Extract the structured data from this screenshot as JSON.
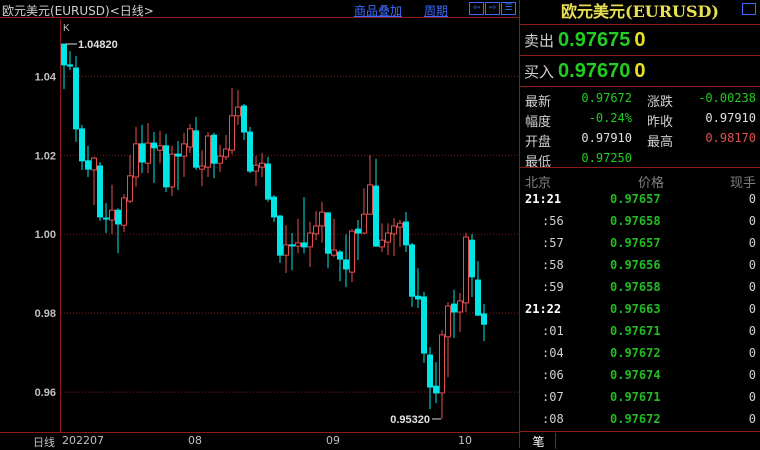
{
  "header": {
    "title": "欧元美元(EURUSD)<日线>",
    "overlay_link": "商品叠加",
    "period_link": "周期",
    "buttons": [
      "left-arrow",
      "right-arrow",
      "split-panel"
    ]
  },
  "colors": {
    "up": "#e05050",
    "down": "#00e5e5",
    "grid": "#8b1a1a",
    "green": "#22cc22",
    "red": "#e05050",
    "yellow": "#e8e020"
  },
  "chart_data": {
    "type": "candlestick",
    "indicator_label": "K",
    "y_ticks": [
      "1.04",
      "1.02",
      "1.00",
      "0.98",
      "0.96"
    ],
    "ylim": [
      0.952,
      1.054
    ],
    "x_axis_label": "日线",
    "x_ticks": [
      {
        "label": "202207",
        "index": 0
      },
      {
        "label": "08",
        "index": 21
      },
      {
        "label": "09",
        "index": 44
      },
      {
        "label": "10",
        "index": 66
      }
    ],
    "high_annotation": {
      "label": "1.04820",
      "index": 0,
      "value": 1.0482
    },
    "low_annotation": {
      "label": "0.95320",
      "index": 63,
      "value": 0.9532
    },
    "ohlc": [
      [
        1.0482,
        1.0482,
        1.0368,
        1.0429
      ],
      [
        1.0429,
        1.0464,
        1.0416,
        1.0426
      ],
      [
        1.0421,
        1.0452,
        1.0234,
        1.0267
      ],
      [
        1.0267,
        1.0277,
        1.0163,
        1.0186
      ],
      [
        1.0186,
        1.0224,
        1.0145,
        1.0165
      ],
      [
        1.0163,
        1.0196,
        1.0074,
        1.0193
      ],
      [
        1.0173,
        1.0183,
        1.0034,
        1.0044
      ],
      [
        1.0041,
        1.0079,
        1.0003,
        1.004
      ],
      [
        1.0036,
        1.0125,
        1.0001,
        1.0061
      ],
      [
        1.0061,
        1.0066,
        0.9952,
        1.0026
      ],
      [
        1.0023,
        1.0102,
        1.0006,
        1.0092
      ],
      [
        1.0084,
        1.0201,
        1.0079,
        1.0148
      ],
      [
        1.0145,
        1.0272,
        1.012,
        1.0229
      ],
      [
        1.0229,
        1.0277,
        1.0155,
        1.0183
      ],
      [
        1.018,
        1.0282,
        1.0155,
        1.0231
      ],
      [
        1.0231,
        1.0259,
        1.013,
        1.0219
      ],
      [
        1.0213,
        1.0262,
        1.018,
        1.0224
      ],
      [
        1.0224,
        1.0254,
        1.0107,
        1.012
      ],
      [
        1.012,
        1.0224,
        1.0097,
        1.0203
      ],
      [
        1.0203,
        1.0236,
        1.0112,
        1.0198
      ],
      [
        1.0198,
        1.0257,
        1.0145,
        1.0229
      ],
      [
        1.0221,
        1.0279,
        1.0206,
        1.0267
      ],
      [
        1.0262,
        1.0297,
        1.0163,
        1.017
      ],
      [
        1.0165,
        1.0213,
        1.0122,
        1.0173
      ],
      [
        1.017,
        1.0259,
        1.0145,
        1.0249
      ],
      [
        1.0251,
        1.0257,
        1.0142,
        1.018
      ],
      [
        1.018,
        1.0226,
        1.0158,
        1.0198
      ],
      [
        1.0196,
        1.0251,
        1.0188,
        1.0216
      ],
      [
        1.0213,
        1.037,
        1.0203,
        1.03
      ],
      [
        1.03,
        1.0365,
        1.0277,
        1.0322
      ],
      [
        1.0325,
        1.033,
        1.0239,
        1.0259
      ],
      [
        1.0259,
        1.0272,
        1.0155,
        1.016
      ],
      [
        1.016,
        1.0198,
        1.0122,
        1.0175
      ],
      [
        1.017,
        1.0206,
        1.0145,
        1.018
      ],
      [
        1.0178,
        1.0196,
        1.0082,
        1.0089
      ],
      [
        1.0094,
        1.0099,
        1.0031,
        1.0044
      ],
      [
        1.0046,
        1.0049,
        0.9927,
        0.9947
      ],
      [
        0.9947,
        1.0023,
        0.9902,
        0.9973
      ],
      [
        0.9973,
        1.0003,
        0.9909,
        0.9972
      ],
      [
        0.997,
        1.0039,
        0.9952,
        0.9978
      ],
      [
        0.9978,
        1.0094,
        0.9952,
        0.9968
      ],
      [
        0.9968,
        1.0031,
        0.9917,
        1.0003
      ],
      [
        1.0001,
        1.0059,
        0.9985,
        1.0021
      ],
      [
        1.0021,
        1.0082,
        0.9978,
        1.0056
      ],
      [
        1.0054,
        1.0056,
        0.9914,
        0.9952
      ],
      [
        0.9947,
        1.0039,
        0.9942,
        0.996
      ],
      [
        0.9955,
        0.996,
        0.9881,
        0.9937
      ],
      [
        0.9935,
        1.0,
        0.9866,
        0.9912
      ],
      [
        0.9904,
        1.0013,
        0.9879,
        1.0008
      ],
      [
        1.0013,
        1.0036,
        0.9935,
        1.0003
      ],
      [
        1.0003,
        1.0117,
        1.0001,
        1.0051
      ],
      [
        1.0051,
        1.0201,
        1.0049,
        1.0125
      ],
      [
        1.0122,
        1.0191,
        0.9968,
        0.997
      ],
      [
        0.9968,
        1.0028,
        0.9955,
        0.9985
      ],
      [
        0.998,
        1.0028,
        0.9947,
        1.0003
      ],
      [
        1.0001,
        1.0041,
        0.9945,
        1.0021
      ],
      [
        1.0018,
        1.0036,
        0.9968,
        1.0028
      ],
      [
        1.0031,
        1.0056,
        0.9955,
        0.9973
      ],
      [
        0.9973,
        0.9978,
        0.9816,
        0.9843
      ],
      [
        0.9843,
        0.9914,
        0.9813,
        0.9836
      ],
      [
        0.9841,
        0.9854,
        0.9674,
        0.9699
      ],
      [
        0.9694,
        0.9714,
        0.9557,
        0.9613
      ],
      [
        0.9615,
        0.9676,
        0.9572,
        0.9598
      ],
      [
        0.9598,
        0.9757,
        0.9532,
        0.9745
      ],
      [
        0.974,
        0.9828,
        0.9638,
        0.9818
      ],
      [
        0.9823,
        0.9859,
        0.9737,
        0.9803
      ],
      [
        0.9803,
        0.9851,
        0.9752,
        0.9831
      ],
      [
        0.9826,
        1.0003,
        0.9803,
        0.9993
      ],
      [
        0.9985,
        1.0001,
        0.9841,
        0.9892
      ],
      [
        0.9884,
        0.9932,
        0.9793,
        0.9795
      ],
      [
        0.9798,
        0.9823,
        0.9729,
        0.9772
      ]
    ]
  },
  "quote": {
    "title": "欧元美元(EURUSD)",
    "sell": {
      "label": "卖出",
      "price": "0.97675",
      "volume": "0"
    },
    "buy": {
      "label": "买入",
      "price": "0.97670",
      "volume": "0"
    },
    "stats": [
      {
        "l1": "最新",
        "v1": "0.97672",
        "c1": "green",
        "l2": "涨跌",
        "v2": "-0.00238",
        "c2": "green"
      },
      {
        "l1": "幅度",
        "v1": "-0.24%",
        "c1": "green",
        "l2": "昨收",
        "v2": "0.97910",
        "c2": "white"
      },
      {
        "l1": "开盘",
        "v1": "0.97910",
        "c1": "white",
        "l2": "最高",
        "v2": "0.98170",
        "c2": "red"
      },
      {
        "l1": "最低",
        "v1": "0.97250",
        "c1": "green",
        "l2": "",
        "v2": "",
        "c2": "white"
      }
    ],
    "tick_headers": {
      "time": "北京",
      "price": "价格",
      "volume": "现手"
    },
    "ticks": [
      {
        "time": "21:21",
        "price": "0.97657",
        "vol": "0"
      },
      {
        "time": ":56",
        "price": "0.97658",
        "vol": "0"
      },
      {
        "time": ":57",
        "price": "0.97657",
        "vol": "0"
      },
      {
        "time": ":58",
        "price": "0.97656",
        "vol": "0"
      },
      {
        "time": ":59",
        "price": "0.97658",
        "vol": "0"
      },
      {
        "time": "21:22",
        "price": "0.97663",
        "vol": "0"
      },
      {
        "time": ":01",
        "price": "0.97671",
        "vol": "0"
      },
      {
        "time": ":04",
        "price": "0.97672",
        "vol": "0"
      },
      {
        "time": ":06",
        "price": "0.97674",
        "vol": "0"
      },
      {
        "time": ":07",
        "price": "0.97671",
        "vol": "0"
      },
      {
        "time": ":08",
        "price": "0.97672",
        "vol": "0"
      }
    ],
    "tab_label": "笔"
  }
}
